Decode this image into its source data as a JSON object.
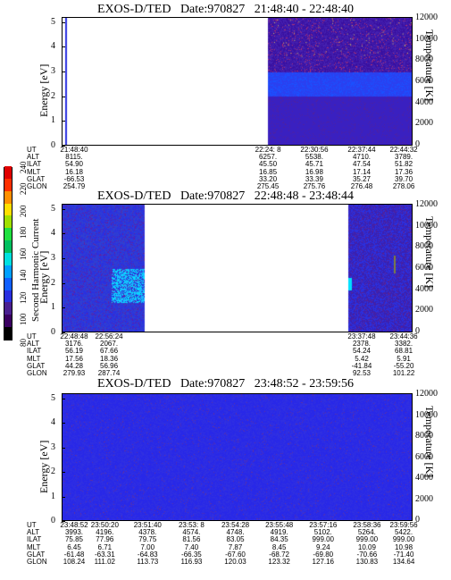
{
  "panels": [
    {
      "title_name": "EXOS-D/TED",
      "title_date": "Date:970827",
      "title_range": "21:48:40 - 22:48:40",
      "y_left_label": "Energy [eV]",
      "y_right_label": "Temperature [K]",
      "y_left_ticks": [
        "0",
        "1",
        "2",
        "3",
        "4",
        "5"
      ],
      "y_right_ticks": [
        "0",
        "2000",
        "4000",
        "6000",
        "8000",
        "10000",
        "12000"
      ],
      "row_labels": [
        "UT",
        "ALT",
        "ILAT",
        "MLT",
        "GLAT",
        "GLON"
      ],
      "columns": [
        {
          "pos": 0.0,
          "values": [
            "21:48:40",
            "8115.",
            "54.90",
            "16.18",
            "-66.53",
            "254.79"
          ]
        },
        {
          "pos": 0.588,
          "values": [
            "22:24: 8",
            "6257.",
            "45.50",
            "16.85",
            "33.20",
            "275.45"
          ]
        },
        {
          "pos": 0.72,
          "values": [
            "22:30:56",
            "5538.",
            "45.71",
            "16.98",
            "33.39",
            "275.76"
          ]
        },
        {
          "pos": 0.855,
          "values": [
            "22:37:44",
            "4710.",
            "47.54",
            "17.14",
            "35.27",
            "276.48"
          ]
        },
        {
          "pos": 0.99,
          "values": [
            "22:44:32",
            "3789.",
            "51.82",
            "17.36",
            "39.70",
            "278.06"
          ]
        }
      ]
    },
    {
      "title_name": "EXOS-D/TED",
      "title_date": "Date:970827",
      "title_range": "22:48:48 - 23:48:44",
      "y_left_label": "Energy [eV]",
      "y_right_label": "Temperature [K]",
      "y_left_ticks": [
        "0",
        "1",
        "2",
        "3",
        "4",
        "5"
      ],
      "y_right_ticks": [
        "0",
        "2000",
        "4000",
        "6000",
        "8000",
        "10000",
        "12000"
      ],
      "row_labels": [
        "UT",
        "ALT",
        "ILAT",
        "MLT",
        "GLAT",
        "GLON"
      ],
      "columns": [
        {
          "pos": 0.0,
          "values": [
            "22:48:48",
            "3176.",
            "56.19",
            "17.56",
            "44.28",
            "279.93"
          ]
        },
        {
          "pos": 0.135,
          "values": [
            "22:56:24",
            "2067.",
            "67.66",
            "18.36",
            "56.96",
            "287.74"
          ]
        },
        {
          "pos": 0.855,
          "values": [
            "23:37:48",
            "2378.",
            "54.24",
            "5.42",
            "-41.84",
            "92.53"
          ]
        },
        {
          "pos": 0.99,
          "values": [
            "23:44:36",
            "3382.",
            "68.81",
            "5.91",
            "-55.20",
            "101.22"
          ]
        }
      ]
    },
    {
      "title_name": "EXOS-D/TED",
      "title_date": "Date:970827",
      "title_range": "23:48:52 - 23:59:56",
      "y_left_label": "Energy [eV]",
      "y_right_label": "Temperature [K]",
      "y_left_ticks": [
        "0",
        "1",
        "2",
        "3",
        "4",
        "5"
      ],
      "y_right_ticks": [
        "0",
        "2000",
        "4000",
        "6000",
        "8000",
        "10000",
        "12000"
      ],
      "row_labels": [
        "UT",
        "ALT",
        "ILAT",
        "MLT",
        "GLAT",
        "GLON"
      ],
      "columns": [
        {
          "pos": 0.0,
          "values": [
            "23:48:52",
            "3993.",
            "75.85",
            "6.45",
            "-61.48",
            "108.24"
          ]
        },
        {
          "pos": 0.123,
          "values": [
            "23:50:20",
            "4196.",
            "77.96",
            "6.71",
            "-63.31",
            "111.02"
          ]
        },
        {
          "pos": 0.245,
          "values": [
            "23:51:40",
            "4378.",
            "79.75",
            "7.00",
            "-64.83",
            "113.73"
          ]
        },
        {
          "pos": 0.37,
          "values": [
            "23:53: 8",
            "4574.",
            "81.56",
            "7.40",
            "-66.35",
            "116.93"
          ]
        },
        {
          "pos": 0.495,
          "values": [
            "23:54:28",
            "4748.",
            "83.05",
            "7.87",
            "-67.60",
            "120.03"
          ]
        },
        {
          "pos": 0.62,
          "values": [
            "23:55:48",
            "4919.",
            "84.35",
            "8.45",
            "-68.72",
            "123.32"
          ]
        },
        {
          "pos": 0.745,
          "values": [
            "23:57:16",
            "5102.",
            "999.00",
            "9.24",
            "-69.80",
            "127.16"
          ]
        },
        {
          "pos": 0.87,
          "values": [
            "23:58:36",
            "5264.",
            "999.00",
            "10.09",
            "-70.66",
            "130.83"
          ]
        },
        {
          "pos": 0.99,
          "values": [
            "23:59:56",
            "5422.",
            "999.00",
            "10.98",
            "-71.40",
            "134.64"
          ]
        }
      ]
    }
  ],
  "colorbar": {
    "label": "Second Harmonic Current",
    "ticks": [
      "80",
      "100",
      "120",
      "140",
      "160",
      "180",
      "200",
      "220",
      "240"
    ],
    "colors": [
      "#000000",
      "#3a0060",
      "#4a2090",
      "#2a30e0",
      "#1060ff",
      "#00a0ff",
      "#00e0e0",
      "#00c060",
      "#20e040",
      "#a0e000",
      "#ffe000",
      "#ff9000",
      "#ff3000",
      "#e00000"
    ]
  },
  "chart_data": [
    {
      "type": "heatmap",
      "title": "EXOS-D/TED Date:970827 21:48:40 - 22:48:40",
      "xlabel": "UT",
      "ylabel": "Energy [eV]",
      "y2label": "Temperature [K]",
      "ylim": [
        0,
        5.2
      ],
      "y2lim": [
        0,
        12000
      ],
      "x_ticks": [
        "21:48:40",
        "22:24: 8",
        "22:30:56",
        "22:37:44",
        "22:44:32"
      ]
    },
    {
      "type": "heatmap",
      "title": "EXOS-D/TED Date:970827 22:48:48 - 23:48:44",
      "xlabel": "UT",
      "ylabel": "Energy [eV]",
      "y2label": "Temperature [K]",
      "ylim": [
        0,
        5.2
      ],
      "y2lim": [
        0,
        12000
      ],
      "x_ticks": [
        "22:48:48",
        "22:56:24",
        "23:37:48",
        "23:44:36"
      ]
    },
    {
      "type": "heatmap",
      "title": "EXOS-D/TED Date:970827 23:48:52 - 23:59:56",
      "xlabel": "UT",
      "ylabel": "Energy [eV]",
      "y2label": "Temperature [K]",
      "ylim": [
        0,
        5.2
      ],
      "y2lim": [
        0,
        12000
      ],
      "x_ticks": [
        "23:48:52",
        "23:50:20",
        "23:51:40",
        "23:53: 8",
        "23:54:28",
        "23:55:48",
        "23:57:16",
        "23:58:36",
        "23:59:56"
      ]
    }
  ]
}
